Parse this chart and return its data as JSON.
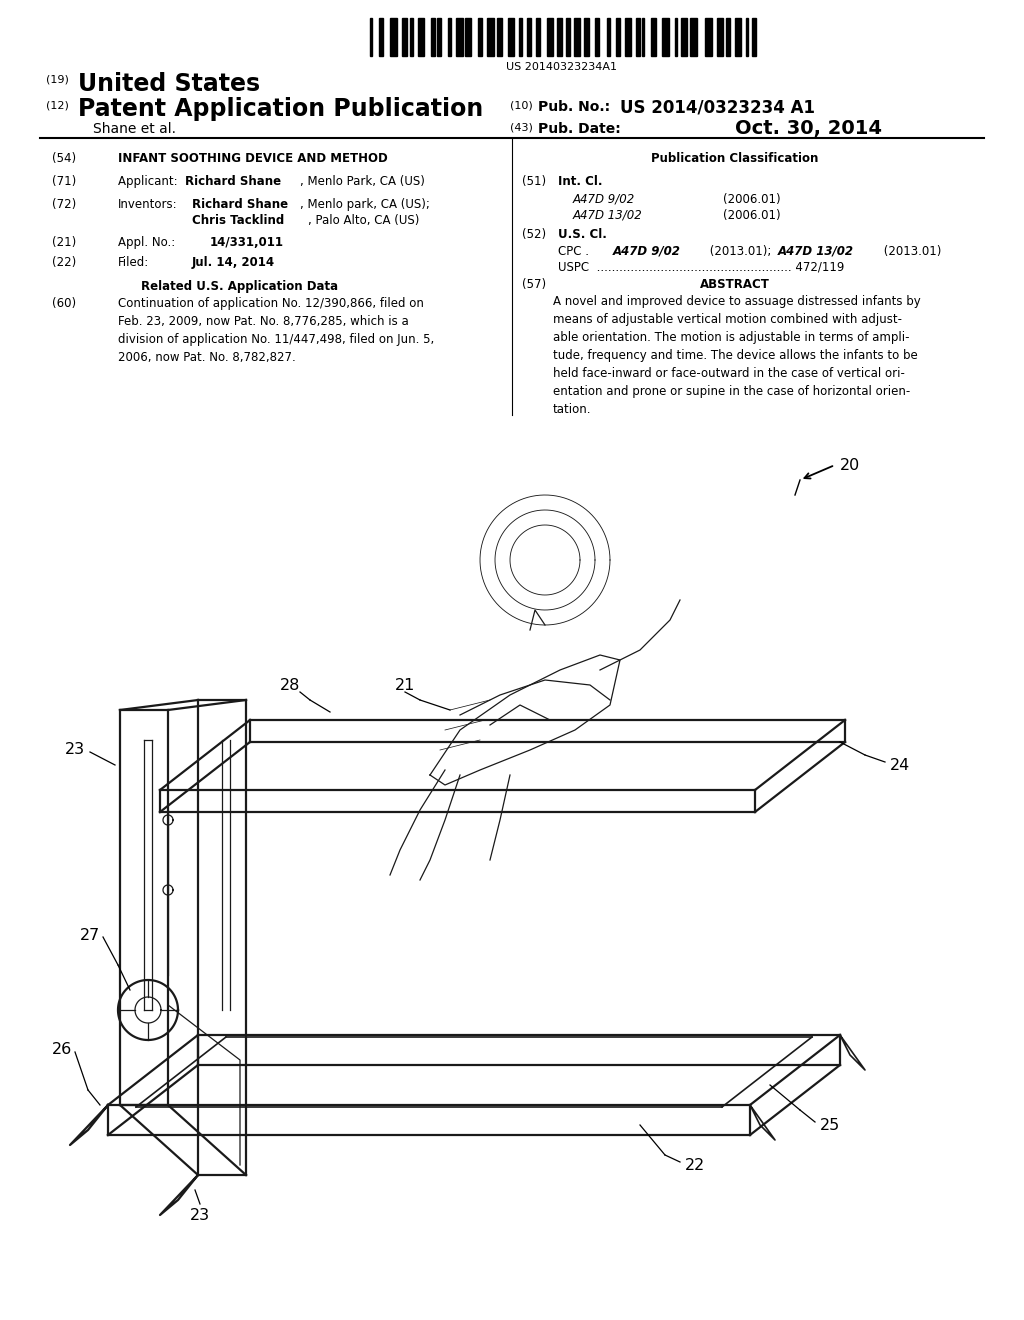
{
  "background_color": "#ffffff",
  "barcode_text": "US 20140323234A1",
  "country": "United States",
  "pub_type": "Patent Application Publication",
  "shane_et_al": "Shane et al.",
  "pub_no": "US 2014/0323234 A1",
  "pub_date": "Oct. 30, 2014",
  "title": "INFANT SOOTHING DEVICE AND METHOD",
  "applicant_bold": "Richard Shane",
  "applicant_rest": ", Menlo Park, CA (US)",
  "inv1_bold": "Richard Shane",
  "inv1_rest": ", Menlo park, CA (US);",
  "inv2_bold": "Chris Tacklind",
  "inv2_rest": ", Palo Alto, CA (US)",
  "appl_no": "14/331,011",
  "filed_date": "Jul. 14, 2014",
  "related_header": "Related U.S. Application Data",
  "related_text": "Continuation of application No. 12/390,866, filed on\nFeb. 23, 2009, now Pat. No. 8,776,285, which is a\ndivision of application No. 11/447,498, filed on Jun. 5,\n2006, now Pat. No. 8,782,827.",
  "pub_class_header": "Publication Classification",
  "intcl_title": "Int. Cl.",
  "class1_code": "A47D 9/02",
  "class1_year": "(2006.01)",
  "class2_code": "A47D 13/02",
  "class2_year": "(2006.01)",
  "uscl_title": "U.S. Cl.",
  "cpc_prefix": "CPC .  ",
  "cpc_code1": "A47D 9/02",
  "cpc_year1": " (2013.01); ",
  "cpc_code2": "A47D 13/02",
  "cpc_year2": " (2013.01)",
  "uspc_line": "USPC  .................................................... 472/119",
  "abstract_title": "ABSTRACT",
  "abstract_text": "A novel and improved device to assuage distressed infants by\nmeans of adjustable vertical motion combined with adjust-\nable orientation. The motion is adjustable in terms of ampli-\ntude, frequency and time. The device allows the infants to be\nheld face-inward or face-outward in the case of vertical ori-\nentation and prone or supine in the case of horizontal orien-\ntation."
}
